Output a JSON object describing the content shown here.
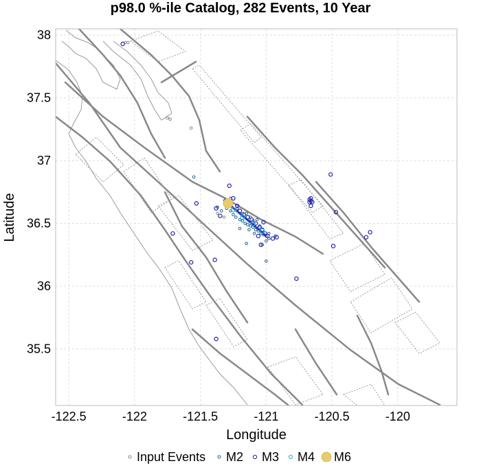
{
  "chart_data": {
    "type": "scatter",
    "title": "p98.0 %-ile Catalog, 282 Events, 10 Year",
    "xlabel": "Longitude",
    "ylabel": "Latitude",
    "xlim": [
      -122.6,
      -119.55
    ],
    "ylim": [
      35.05,
      38.05
    ],
    "x_ticks": [
      -122.5,
      -122,
      -121.5,
      -121,
      -120.5,
      -120
    ],
    "x_tick_labels": [
      "-122.5",
      "-122",
      "-121.5",
      "-121",
      "-120.5",
      "-120"
    ],
    "y_ticks": [
      35.5,
      36,
      36.5,
      37,
      37.5,
      38
    ],
    "y_tick_labels": [
      "35.5",
      "36",
      "36.5",
      "37",
      "37.5",
      "38"
    ],
    "grid": true,
    "legend_position": "bottom",
    "legend": [
      {
        "label": "Input Events",
        "color": "#888888",
        "marker": "open-circle-small"
      },
      {
        "label": "M2",
        "color": "#1f5f8b",
        "marker": "open-circle-small"
      },
      {
        "label": "M3",
        "color": "#2222aa",
        "marker": "open-circle"
      },
      {
        "label": "M4",
        "color": "#33aadd",
        "marker": "open-circle"
      },
      {
        "label": "M6",
        "color": "#e6cc6e",
        "marker": "filled-circle"
      }
    ],
    "series": [
      {
        "name": "Input Events",
        "color": "#888888",
        "points": [
          [
            -122.07,
            37.94
          ],
          [
            -122.05,
            37.94
          ],
          [
            -121.75,
            37.34
          ],
          [
            -121.73,
            37.33
          ],
          [
            -121.57,
            37.26
          ],
          [
            -121.37,
            36.58
          ],
          [
            -121.32,
            36.55
          ],
          [
            -121.22,
            36.6
          ],
          [
            -121.18,
            36.58
          ]
        ]
      },
      {
        "name": "M2",
        "color": "#1f5f8b",
        "points": [
          [
            -121.55,
            36.87
          ],
          [
            -121.37,
            36.63
          ],
          [
            -121.34,
            36.6
          ],
          [
            -121.3,
            36.62
          ],
          [
            -121.27,
            36.6
          ],
          [
            -121.25,
            36.57
          ],
          [
            -121.23,
            36.55
          ],
          [
            -121.2,
            36.53
          ],
          [
            -121.18,
            36.52
          ],
          [
            -121.16,
            36.5
          ],
          [
            -121.14,
            36.49
          ],
          [
            -121.12,
            36.48
          ],
          [
            -121.1,
            36.47
          ],
          [
            -121.08,
            36.45
          ],
          [
            -121.06,
            36.44
          ],
          [
            -121.04,
            36.42
          ],
          [
            -121.02,
            36.41
          ],
          [
            -121.0,
            36.4
          ],
          [
            -120.98,
            36.38
          ],
          [
            -121.1,
            36.52
          ],
          [
            -121.05,
            36.48
          ],
          [
            -121.13,
            36.45
          ],
          [
            -121.09,
            36.42
          ],
          [
            -121.0,
            36.36
          ],
          [
            -120.98,
            36.42
          ],
          [
            -121.2,
            36.46
          ],
          [
            -121.03,
            36.33
          ],
          [
            -121.15,
            36.34
          ],
          [
            -121.0,
            36.2
          ],
          [
            -121.27,
            36.7
          ],
          [
            -121.22,
            36.62
          ],
          [
            -121.15,
            36.58
          ],
          [
            -121.12,
            36.55
          ],
          [
            -121.07,
            36.53
          ],
          [
            -120.93,
            36.4
          ]
        ]
      },
      {
        "name": "M3",
        "color": "#2222aa",
        "points": [
          [
            -122.09,
            37.93
          ],
          [
            -121.38,
            36.62
          ],
          [
            -121.35,
            36.56
          ],
          [
            -121.29,
            36.64
          ],
          [
            -121.31,
            36.68
          ],
          [
            -121.28,
            36.8
          ],
          [
            -121.25,
            36.7
          ],
          [
            -121.22,
            36.64
          ],
          [
            -121.2,
            36.6
          ],
          [
            -121.17,
            36.57
          ],
          [
            -121.14,
            36.55
          ],
          [
            -121.11,
            36.53
          ],
          [
            -121.08,
            36.5
          ],
          [
            -121.05,
            36.47
          ],
          [
            -121.03,
            36.45
          ],
          [
            -121.01,
            36.42
          ],
          [
            -120.99,
            36.4
          ],
          [
            -121.06,
            36.4
          ],
          [
            -121.04,
            36.33
          ],
          [
            -121.02,
            36.51
          ],
          [
            -120.95,
            36.38
          ],
          [
            -120.92,
            36.39
          ],
          [
            -121.53,
            36.66
          ],
          [
            -121.71,
            36.42
          ],
          [
            -121.57,
            36.19
          ],
          [
            -121.39,
            36.21
          ],
          [
            -121.38,
            35.58
          ],
          [
            -120.77,
            36.06
          ],
          [
            -120.51,
            36.89
          ],
          [
            -120.49,
            36.32
          ],
          [
            -120.47,
            36.59
          ],
          [
            -120.24,
            36.39
          ],
          [
            -120.21,
            36.43
          ],
          [
            -120.66,
            36.7
          ],
          [
            -120.67,
            36.69
          ],
          [
            -120.66,
            36.68
          ],
          [
            -120.67,
            36.67
          ],
          [
            -120.65,
            36.67
          ],
          [
            -120.66,
            36.64
          ]
        ]
      },
      {
        "name": "M4",
        "color": "#33aadd",
        "points": [
          [
            -121.25,
            36.61
          ],
          [
            -121.18,
            36.55
          ],
          [
            -121.1,
            36.5
          ],
          [
            -121.03,
            36.44
          ]
        ]
      },
      {
        "name": "M6",
        "color": "#e6cc6e",
        "points": [
          [
            -121.29,
            36.66
          ]
        ]
      }
    ]
  }
}
